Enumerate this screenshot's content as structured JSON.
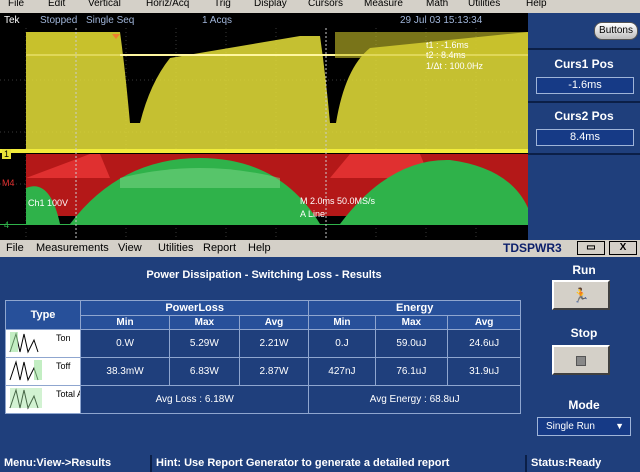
{
  "scope_menu": [
    "File",
    "Edit",
    "Vertical",
    "Horiz/Acq",
    "Trig",
    "Display",
    "Cursors",
    "Measure",
    "Math",
    "Utilities",
    "Help"
  ],
  "scope_status": {
    "brand": "Tek",
    "state": "Stopped",
    "mode": "Single Seq",
    "acqs": "1 Acqs",
    "datetime": "29 Jul 03 15:13:34"
  },
  "cursor_readout": {
    "t1": "t1 : -1.6ms",
    "t2": "t2 : 8.4ms",
    "delta": "1/Δt : 100.0Hz"
  },
  "scope_side": {
    "buttons_label": "Buttons",
    "curs1_label": "Curs1 Pos",
    "curs1_value": "-1.6ms",
    "curs2_label": "Curs2 Pos",
    "curs2_value": "8.4ms"
  },
  "waveform": {
    "ch1_marker": "1",
    "m4_marker": "M4",
    "ch4_marker": "4",
    "ch1_scale": "Ch1     100V",
    "timebase": "M 2.0ms 50.0MS/s",
    "trigger": "A  Line",
    "colors": {
      "ch1": "#e8e23a",
      "math": "#d81e1e",
      "ch4": "#2fb24a"
    }
  },
  "app_menu": [
    "File",
    "Measurements",
    "View",
    "Utilities",
    "Report",
    "Help"
  ],
  "app_title": "TDSPWR3",
  "window_buttons": {
    "restore": "▭",
    "close": "X"
  },
  "results": {
    "title": "Power Dissipation - Switching Loss -  Results",
    "type_header": "Type",
    "group_headers": [
      "PowerLoss",
      "Energy"
    ],
    "sub_headers": [
      "Min",
      "Max",
      "Avg",
      "Min",
      "Max",
      "Avg"
    ],
    "rows": [
      {
        "type": "Ton",
        "values": [
          "0.W",
          "5.29W",
          "2.21W",
          "0.J",
          "59.0uJ",
          "24.6uJ"
        ]
      },
      {
        "type": "Toff",
        "values": [
          "38.3mW",
          "6.83W",
          "2.87W",
          "427nJ",
          "76.1uJ",
          "31.9uJ"
        ]
      }
    ],
    "total_row": {
      "type": "Total Avg",
      "avg_loss": "Avg Loss : 6.18W",
      "avg_energy": "Avg Energy : 68.8uJ"
    }
  },
  "controls": {
    "run_label": "Run",
    "stop_label": "Stop",
    "mode_label": "Mode",
    "mode_value": "Single Run"
  },
  "status_bar": {
    "nav": "Menu:View->Results",
    "hint": "Hint: Use Report Generator to generate a detailed report",
    "status": "Status:Ready"
  }
}
